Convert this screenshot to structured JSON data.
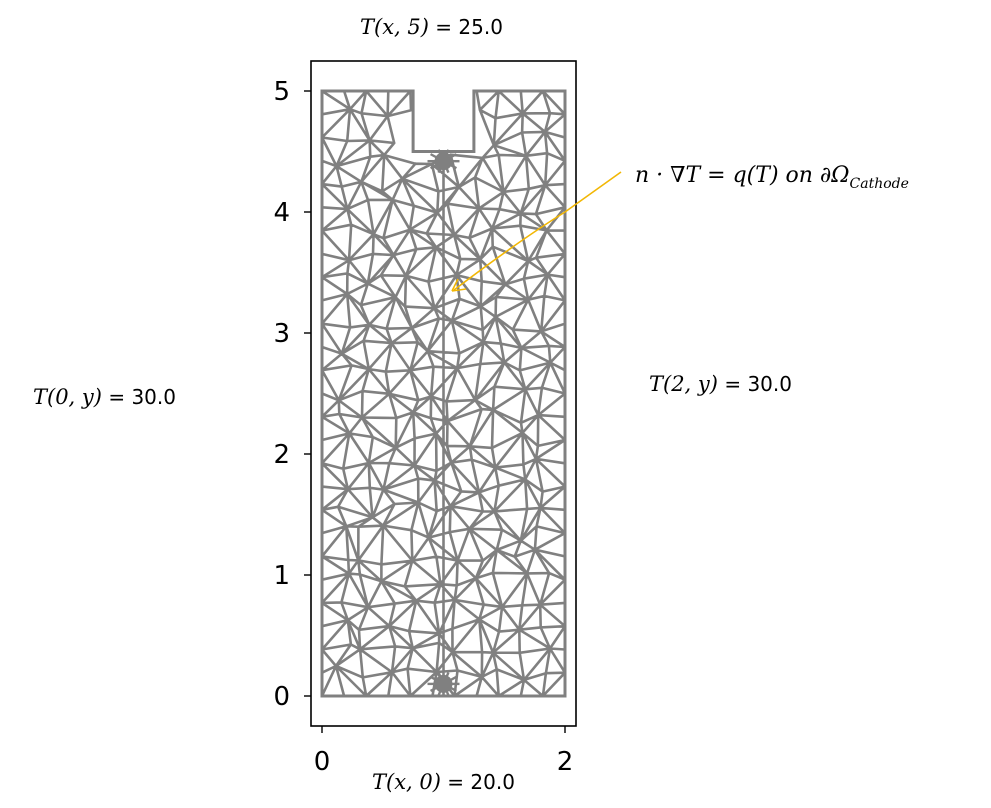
{
  "axes": {
    "x_ticks": [
      "0",
      "2"
    ],
    "y_ticks": [
      "0",
      "1",
      "2",
      "3",
      "4",
      "5"
    ]
  },
  "mesh": {
    "color": "#808080",
    "outline": [
      [
        0,
        0
      ],
      [
        2,
        0
      ],
      [
        2,
        5
      ],
      [
        1.25,
        5
      ],
      [
        1.25,
        4.5
      ],
      [
        0.75,
        4.5
      ],
      [
        0.75,
        5
      ],
      [
        0,
        5
      ]
    ],
    "dense_points": [
      [
        1.0,
        4.42
      ],
      [
        1.0,
        0.1
      ]
    ]
  },
  "boundary_labels": {
    "top": {
      "math": "T(x, 5)",
      "value": " = 25.0"
    },
    "bottom": {
      "math": "T(x, 0)",
      "value": " = 20.0"
    },
    "left": {
      "math": "T(0, y)",
      "value": " = 30.0"
    },
    "right": {
      "math": "T(2, y)",
      "value": " = 30.0"
    }
  },
  "annotation": {
    "equation": "n · ∇T = q(T)   on   ∂Ω",
    "subscript": "Cathode",
    "arrow_color": "#f2b705"
  }
}
